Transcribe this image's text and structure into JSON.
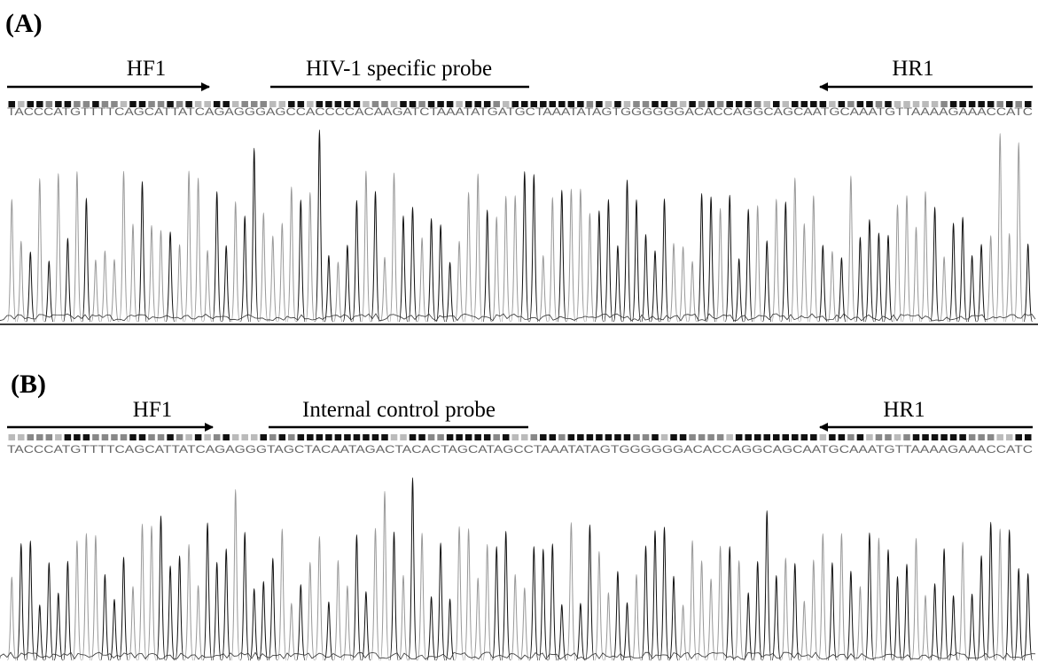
{
  "panels": [
    {
      "label": "(A)",
      "forward_primer": "HF1",
      "probe": "HIV-1 specific probe",
      "reverse_primer": "HR1",
      "sequence": "TACCCATGTTTTCAGCATTATCAGAGGGAGCCACCCCACAAGATCTAAATATGATGCTAAATATAGTGGGGGGACACCAGGCAGCAATGCAAATGTTAAAAGAAACCATC"
    },
    {
      "label": "(B)",
      "forward_primer": "HF1",
      "probe": "Internal control probe",
      "reverse_primer": "HR1",
      "sequence": "TACCCATGTTTTCAGCATTATCAGAGGGTAGCTACAATAGACTACACTAGCATAGCCTAAATATAGTGGGGGGACACCAGGCAGCAATGCAAATGTTAAAAGAAACCATC"
    }
  ]
}
